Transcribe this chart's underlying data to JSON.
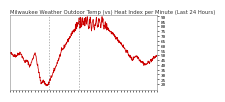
{
  "title": "Milwaukee Weather Outdoor Temp (vs) Heat Index per Minute (Last 24 Hours)",
  "line_color": "#cc0000",
  "bg_color": "#ffffff",
  "plot_bg_color": "#ffffff",
  "vline_color": "#999999",
  "ylim": [
    14,
    92
  ],
  "yticks": [
    20,
    25,
    30,
    35,
    40,
    45,
    50,
    55,
    60,
    65,
    70,
    75,
    80,
    85,
    90
  ],
  "title_fontsize": 3.8,
  "tick_fontsize": 3.2,
  "line_width": 0.55,
  "vline_positions": [
    0.265,
    0.465
  ]
}
